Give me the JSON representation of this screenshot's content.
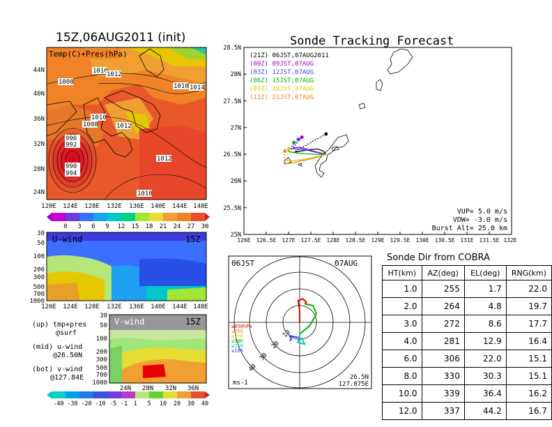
{
  "left_panel": {
    "title": "15Z,06AUG2011 (init)",
    "top_map_label": "Temp(C)+Pres(hPa)",
    "lat_labels": [
      "44N",
      "40N",
      "36N",
      "32N",
      "28N",
      "24N"
    ],
    "lon_labels": [
      "120E",
      "124E",
      "128E",
      "132E",
      "136E",
      "140E",
      "144E",
      "148E"
    ],
    "isobar_labels": [
      "1008",
      "1010",
      "1012",
      "1010",
      "1014",
      "1010",
      "1008",
      "1012",
      "1012",
      "996",
      "992",
      "990",
      "994",
      "1010"
    ],
    "temp_colorbar": [
      "0",
      "3",
      "6",
      "9",
      "12",
      "15",
      "18",
      "21",
      "24",
      "27",
      "30"
    ],
    "uwind_label": "U-wind",
    "uwind_time": "15Z",
    "uwind_pressure_labels": [
      "30",
      "50",
      "100",
      "200",
      "300",
      "500",
      "700",
      "1000"
    ],
    "vwind_label": "V-wind",
    "vwind_time": "15Z",
    "vwind_pressure_labels": [
      "30",
      "50",
      "100",
      "200",
      "300",
      "500",
      "700",
      "1000"
    ],
    "vwind_lat_labels": [
      "24N",
      "28N",
      "32N",
      "36N"
    ],
    "wind_colorbar": [
      "-40",
      "-30",
      "-20",
      "-10",
      "-5",
      "-1",
      "1",
      "5",
      "10",
      "20",
      "30",
      "40"
    ],
    "legend_lines": [
      "(up) tmp+pres",
      "@surf",
      "(mid) u-wind",
      "@26.50N",
      "(bot) v-wind",
      "@127.84E"
    ]
  },
  "track_panel": {
    "title": "Sonde Tracking Forecast",
    "lat_labels": [
      "28.5N",
      "28N",
      "27.5N",
      "27N",
      "26.5N",
      "26N",
      "25.5N",
      "25N"
    ],
    "lon_labels": [
      "126E",
      "126.5E",
      "127E",
      "127.5E",
      "128E",
      "128.5E",
      "129E",
      "129.5E",
      "130E",
      "130.5E",
      "131E",
      "131.5E",
      "132E"
    ],
    "legend": [
      {
        "text": "(21Z)  06JST,07AUG2011",
        "color": "#000000"
      },
      {
        "text": "(00Z)  09JST,07AUG",
        "color": "#a000c8"
      },
      {
        "text": "(03Z)  12JST,07AUG",
        "color": "#3c3cff"
      },
      {
        "text": "(06Z)  15JST,07AUG",
        "color": "#00b400"
      },
      {
        "text": "(09Z)  18JST,07AUG",
        "color": "#e6c800"
      },
      {
        "text": "(12Z)  21JST,07AUG",
        "color": "#f08228"
      }
    ],
    "params": [
      "VUP= 5.0 m/s",
      "VDW= -3.0 m/s",
      "Burst Alt= 25.0 km"
    ]
  },
  "hodo_panel": {
    "time_left": "06JST",
    "time_right": "07AUG",
    "ring_labels": [
      "10",
      "20",
      "30",
      "40"
    ],
    "legend": [
      {
        "text": "≥850hPa",
        "color": "#e60000"
      },
      {
        "text": "≤850",
        "color": "#f08228"
      },
      {
        "text": "≤700",
        "color": "#e6c800"
      },
      {
        "text": "≤500",
        "color": "#00b400"
      },
      {
        "text": "≤250",
        "color": "#00c8c8"
      },
      {
        "text": "≤100",
        "color": "#3c3cff"
      }
    ],
    "units": "ms-1",
    "lat": "26.5N",
    "lon": "127.875E"
  },
  "table": {
    "title": "Sonde Dir from COBRA",
    "headers": [
      "HT(km)",
      "AZ(deg)",
      "EL(deg)",
      "RNG(km)"
    ],
    "rows": [
      [
        "1.0",
        "255",
        "1.7",
        "22.0"
      ],
      [
        "2.0",
        "264",
        "4.8",
        "19.7"
      ],
      [
        "3.0",
        "272",
        "8.6",
        "17.7"
      ],
      [
        "4.0",
        "281",
        "12.9",
        "16.4"
      ],
      [
        "6.0",
        "306",
        "22.0",
        "15.1"
      ],
      [
        "8.0",
        "330",
        "30.3",
        "15.1"
      ],
      [
        "10.0",
        "339",
        "36.4",
        "16.2"
      ],
      [
        "12.0",
        "337",
        "44.2",
        "16.7"
      ]
    ]
  },
  "chart_data": [
    {
      "type": "heatmap",
      "title": "15Z,06AUG2011 (init)",
      "label": "Temp(C)+Pres(hPa)",
      "x_ticks": [
        "120E",
        "124E",
        "128E",
        "132E",
        "136E",
        "140E",
        "144E",
        "148E"
      ],
      "y_ticks": [
        "24N",
        "28N",
        "32N",
        "36N",
        "40N",
        "44N"
      ],
      "color_levels": [
        0,
        3,
        6,
        9,
        12,
        15,
        18,
        21,
        24,
        27,
        30
      ],
      "isobars": [
        1008,
        1010,
        1012,
        1010,
        1014,
        1010,
        1008,
        1012,
        1012,
        996,
        992,
        990,
        994,
        1010
      ]
    },
    {
      "type": "heatmap",
      "label": "U-wind",
      "time": "15Z",
      "x_ticks": [
        "120E",
        "124E",
        "128E",
        "132E",
        "136E",
        "140E",
        "144E",
        "148E"
      ],
      "y_ticks": [
        30,
        50,
        100,
        200,
        300,
        500,
        700,
        1000
      ],
      "color_levels": [
        -40,
        -30,
        -20,
        -10,
        -5,
        -1,
        1,
        5,
        10,
        20,
        30,
        40
      ]
    },
    {
      "type": "heatmap",
      "label": "V-wind",
      "time": "15Z",
      "x_ticks": [
        "24N",
        "28N",
        "32N",
        "36N"
      ],
      "y_ticks": [
        30,
        50,
        100,
        200,
        300,
        500,
        700,
        1000
      ],
      "color_levels": [
        -40,
        -30,
        -20,
        -10,
        -5,
        -1,
        1,
        5,
        10,
        20,
        30,
        40
      ]
    },
    {
      "type": "line",
      "title": "Sonde Tracking Forecast",
      "xlim": [
        126,
        132
      ],
      "ylim": [
        25,
        28.5
      ],
      "series": [
        {
          "name": "(21Z)  06JST,07AUG2011",
          "color": "#000000",
          "x": [
            127.84,
            127.78,
            127.65,
            127.5,
            127.35,
            127.2,
            127.1
          ],
          "y": [
            26.5,
            26.56,
            26.6,
            26.59,
            26.57,
            26.55,
            26.53
          ],
          "burst": [
            127.84,
            26.88
          ]
        },
        {
          "name": "(00Z)  09JST,07AUG",
          "color": "#a000c8",
          "x": [
            127.84,
            127.6,
            127.4,
            127.25,
            127.1
          ],
          "y": [
            26.5,
            26.55,
            26.6,
            26.63,
            26.62
          ],
          "burst": [
            127.3,
            26.82
          ]
        },
        {
          "name": "(03Z)  12JST,07AUG",
          "color": "#3c3cff",
          "x": [
            127.84,
            127.6,
            127.4,
            127.2,
            127.05
          ],
          "y": [
            26.5,
            26.54,
            26.58,
            26.6,
            26.6
          ],
          "burst": [
            127.22,
            26.78
          ]
        },
        {
          "name": "(06Z)  15JST,07AUG",
          "color": "#00b400",
          "x": [
            127.84,
            127.6,
            127.35,
            127.15,
            127.0
          ],
          "y": [
            26.5,
            26.5,
            26.51,
            26.53,
            26.55
          ],
          "burst": [
            127.12,
            26.72
          ]
        },
        {
          "name": "(09Z)  18JST,07AUG",
          "color": "#e6c800",
          "x": [
            127.84,
            127.55,
            127.3,
            127.1,
            126.95
          ],
          "y": [
            26.5,
            26.44,
            26.4,
            26.38,
            26.38
          ],
          "burst": [
            127.0,
            26.6
          ]
        },
        {
          "name": "(12Z)  21JST,07AUG",
          "color": "#f08228",
          "x": [
            127.84,
            127.55,
            127.3,
            127.1,
            126.9
          ],
          "y": [
            26.5,
            26.42,
            26.38,
            26.34,
            26.32
          ],
          "burst": [
            126.92,
            26.56
          ]
        }
      ],
      "annotations": [
        "VUP= 5.0 m/s",
        "VDW= -3.0 m/s",
        "Burst Alt= 25.0 km"
      ]
    },
    {
      "type": "line",
      "label": "hodograph",
      "units": "ms-1",
      "rings": [
        10,
        20,
        30,
        40
      ],
      "segments": [
        {
          "level": "≥850hPa",
          "color": "#e60000",
          "u": [
            0,
            0,
            -1,
            2,
            4,
            3
          ],
          "v": [
            0,
            -7,
            -13,
            -14,
            -12,
            -11
          ]
        },
        {
          "level": "≤500",
          "color": "#00b400",
          "u": [
            3,
            8,
            10
          ],
          "v": [
            -11,
            -10,
            -5
          ]
        },
        {
          "level": "≤500",
          "color": "#00b400",
          "u": [
            10,
            6,
            0
          ],
          "v": [
            -5,
            2,
            7
          ]
        },
        {
          "level": "≤250",
          "color": "#00c8c8",
          "u": [
            0,
            -1,
            3,
            1
          ],
          "v": [
            7,
            12,
            13,
            9
          ]
        },
        {
          "level": "≤100",
          "color": "#3c3cff",
          "u": [
            -1,
            -6,
            -5,
            -6
          ],
          "v": [
            9,
            8,
            10,
            11
          ]
        }
      ],
      "lat": "26.5N",
      "lon": "127.875E"
    }
  ]
}
